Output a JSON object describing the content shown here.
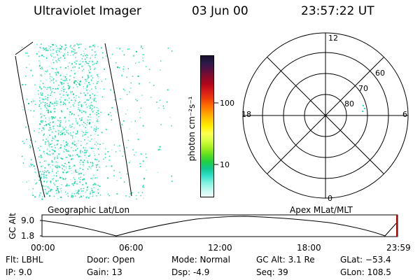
{
  "header": {
    "title": "Ultraviolet Imager",
    "date": "03 Jun 00",
    "time": "23:57:22 UT"
  },
  "colorbar": {
    "unit_label": "photon cm⁻²s⁻¹",
    "tick_100": "100",
    "tick_10": "10",
    "colors_top_to_bottom": [
      "#1a0f2e",
      "#2b1a4a",
      "#5a1040",
      "#8a0a2a",
      "#b0061a",
      "#d81a1a",
      "#ee3a0a",
      "#ff6a00",
      "#ff9a00",
      "#ffc800",
      "#ffee00",
      "#ffff50",
      "#d8ff40",
      "#a8f020",
      "#60e020",
      "#20d040",
      "#10c890",
      "#30e0c8",
      "#80f0e0",
      "#c0f8f0",
      "#f0fcfc"
    ]
  },
  "polar_plot": {
    "mlt_top": "12",
    "mlt_left": "18",
    "mlt_right": "6",
    "mlt_bottom": "0",
    "lat_60": "60",
    "lat_70": "70",
    "lat_80": "80"
  },
  "labels": {
    "geographic": "Geographic Lat/Lon",
    "apex": "Apex MLat/MLT"
  },
  "altitude_plot": {
    "axis_label": "GC Alt",
    "ymax": "9.0",
    "ymin": "1.8",
    "xticks": [
      "00:00",
      "06:00",
      "12:00",
      "18:00",
      "23:59"
    ]
  },
  "footer": {
    "flt": "Flt:  LBHL",
    "ip": "IP:  9.0",
    "door": "Door:  Open",
    "gain": "Gain:  13",
    "mode": "Mode:  Normal",
    "dsp": "Dsp:     -4.9",
    "gcalt": "GC Alt:  3.1 Re",
    "seq": "Seq:  39",
    "glat": "GLat:  −53.4",
    "glon": "GLon:  108.5"
  }
}
